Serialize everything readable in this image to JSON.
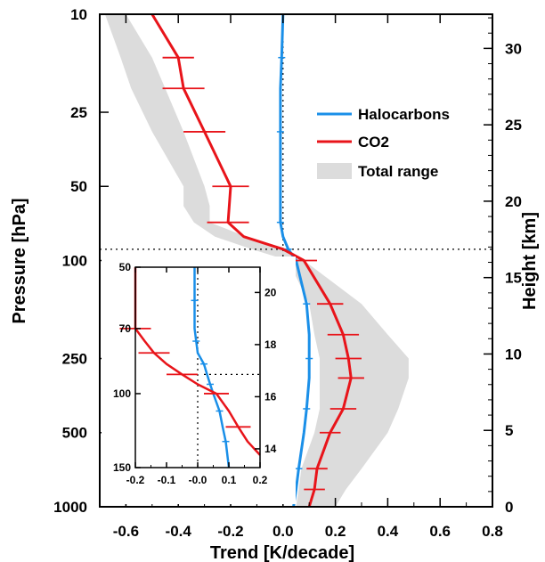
{
  "chart_data": [
    {
      "type": "line",
      "xlabel": "Trend [K/decade]",
      "ylabel": "Pressure [hPa]",
      "ylabel_right": "Height [km]",
      "xlim": [
        -0.7,
        0.8
      ],
      "ylim": [
        1000,
        10
      ],
      "yscale": "log",
      "x_ticks": [
        "-0.6",
        "-0.4",
        "-0.2",
        "0.0",
        "0.2",
        "0.4",
        "0.6",
        "0.8"
      ],
      "y_ticks": [
        "10",
        "25",
        "50",
        "100",
        "250",
        "500",
        "1000"
      ],
      "y_right_ticks": [
        "0",
        "5",
        "10",
        "15",
        "20",
        "25",
        "30"
      ],
      "legend": {
        "position": "top-right",
        "entries": [
          "Halocarbons",
          "CO2",
          "Total range"
        ]
      },
      "series": [
        {
          "name": "Halocarbons",
          "color": "#1a8fe8",
          "pressure": [
            10,
            15,
            20,
            30,
            50,
            70,
            80,
            90,
            100,
            150,
            200,
            250,
            300,
            400,
            500,
            700,
            850,
            1000
          ],
          "values": [
            0.0,
            -0.005,
            -0.01,
            -0.01,
            -0.01,
            -0.01,
            0.0,
            0.02,
            0.05,
            0.09,
            0.1,
            0.1,
            0.1,
            0.09,
            0.08,
            0.06,
            0.05,
            0.04
          ]
        },
        {
          "name": "CO2",
          "color": "#e8141a",
          "pressure": [
            10,
            15,
            20,
            30,
            50,
            70,
            80,
            90,
            100,
            150,
            200,
            250,
            300,
            400,
            500,
            700,
            850,
            1000
          ],
          "values": [
            -0.5,
            -0.4,
            -0.38,
            -0.3,
            -0.2,
            -0.21,
            -0.15,
            0.0,
            0.08,
            0.18,
            0.23,
            0.25,
            0.26,
            0.23,
            0.18,
            0.13,
            0.12,
            0.1
          ],
          "error_bars": [
            {
              "p": 15,
              "x": -0.4,
              "err": 0.06
            },
            {
              "p": 20,
              "x": -0.38,
              "err": 0.08
            },
            {
              "p": 30,
              "x": -0.3,
              "err": 0.08
            },
            {
              "p": 50,
              "x": -0.2,
              "err": 0.07
            },
            {
              "p": 70,
              "x": -0.21,
              "err": 0.08
            },
            {
              "p": 100,
              "x": 0.08,
              "err": 0.05
            },
            {
              "p": 150,
              "x": 0.18,
              "err": 0.05
            },
            {
              "p": 200,
              "x": 0.23,
              "err": 0.06
            },
            {
              "p": 250,
              "x": 0.25,
              "err": 0.05
            },
            {
              "p": 300,
              "x": 0.26,
              "err": 0.05
            },
            {
              "p": 400,
              "x": 0.23,
              "err": 0.05
            },
            {
              "p": 500,
              "x": 0.18,
              "err": 0.04
            },
            {
              "p": 700,
              "x": 0.13,
              "err": 0.04
            },
            {
              "p": 850,
              "x": 0.12,
              "err": 0.04
            }
          ]
        },
        {
          "name": "Total range",
          "color": "#dcdcdc",
          "pressure": [
            10,
            15,
            20,
            30,
            50,
            60,
            70,
            80,
            90,
            100,
            150,
            200,
            250,
            300,
            400,
            500,
            700,
            850,
            1000
          ],
          "lower": [
            -0.68,
            -0.62,
            -0.58,
            -0.5,
            -0.38,
            -0.38,
            -0.34,
            -0.26,
            -0.12,
            0.02,
            0.1,
            0.12,
            0.14,
            0.14,
            0.14,
            0.12,
            0.07,
            0.06,
            0.05
          ],
          "upper": [
            -0.6,
            -0.5,
            -0.45,
            -0.38,
            -0.3,
            -0.28,
            -0.28,
            -0.14,
            0.02,
            0.08,
            0.3,
            0.4,
            0.48,
            0.48,
            0.44,
            0.4,
            0.3,
            0.24,
            0.2
          ]
        }
      ],
      "reference_lines": {
        "x": 0.0,
        "pressure": 90
      }
    },
    {
      "type": "line",
      "inset": true,
      "xlim": [
        -0.2,
        0.2
      ],
      "ylim": [
        150,
        50
      ],
      "yscale": "log",
      "x_ticks": [
        "-0.2",
        "-0.1",
        "-0.0",
        "0.1",
        "0.2"
      ],
      "y_ticks": [
        "50",
        "70",
        "100",
        "150"
      ],
      "y_right_ticks": [
        "14",
        "16",
        "18",
        "20"
      ],
      "series": [
        {
          "name": "Halocarbons",
          "color": "#1a8fe8",
          "pressure": [
            50,
            60,
            70,
            75,
            80,
            85,
            90,
            95,
            100,
            110,
            120,
            130,
            150
          ],
          "values": [
            -0.01,
            -0.01,
            -0.01,
            -0.005,
            0.0,
            0.02,
            0.03,
            0.04,
            0.05,
            0.07,
            0.08,
            0.09,
            0.1
          ]
        },
        {
          "name": "CO2",
          "color": "#e8141a",
          "pressure": [
            50,
            60,
            70,
            75,
            80,
            85,
            90,
            95,
            100,
            110,
            120,
            130,
            140
          ],
          "values": [
            -0.2,
            -0.2,
            -0.2,
            -0.17,
            -0.14,
            -0.1,
            -0.05,
            0.0,
            0.06,
            0.1,
            0.13,
            0.16,
            0.2
          ],
          "error_bars": [
            {
              "p": 70,
              "x": -0.2,
              "err": 0.05
            },
            {
              "p": 80,
              "x": -0.14,
              "err": 0.05
            },
            {
              "p": 90,
              "x": -0.05,
              "err": 0.05
            },
            {
              "p": 100,
              "x": 0.06,
              "err": 0.04
            },
            {
              "p": 120,
              "x": 0.13,
              "err": 0.04
            }
          ]
        }
      ],
      "reference_lines": {
        "x": 0.0,
        "pressure": 90
      }
    }
  ],
  "colors": {
    "halocarbons": "#1a8fe8",
    "co2": "#e8141a",
    "range": "#dcdcdc",
    "axes": "#000000"
  }
}
